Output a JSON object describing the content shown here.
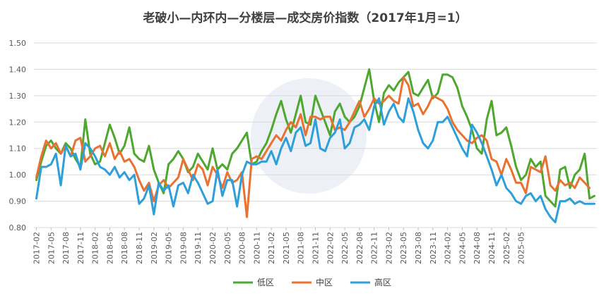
{
  "chart_data": {
    "type": "line",
    "title": "老破小—内环内—分楼层—成交房价指数（2017年1月=1）",
    "xlabel": "",
    "ylabel": "",
    "ylim": [
      0.8,
      1.5
    ],
    "yticks": [
      "0.80",
      "0.90",
      "1.00",
      "1.10",
      "1.20",
      "1.30",
      "1.40",
      "1.50"
    ],
    "grid": true,
    "legend_position": "bottom-center",
    "start_month": "2017-02",
    "x_tick_labels": [
      "2017-02",
      "2017-05",
      "2017-08",
      "2017-11",
      "2018-02",
      "2018-05",
      "2018-08",
      "2018-11",
      "2019-02",
      "2019-05",
      "2019-08",
      "2019-11",
      "2020-02",
      "2020-05",
      "2020-08",
      "2020-11",
      "2021-02",
      "2021-05",
      "2021-08",
      "2021-11",
      "2022-02",
      "2022-05",
      "2022-08",
      "2022-11",
      "2023-02",
      "2023-05",
      "2023-08",
      "2023-11",
      "2024-02",
      "2024-05",
      "2024-08",
      "2024-11",
      "2025-02",
      "2025-05"
    ],
    "series": [
      {
        "name": "低区",
        "color": "#4ea72e",
        "values": [
          0.98,
          1.05,
          1.11,
          1.13,
          1.1,
          1.08,
          1.12,
          1.1,
          1.06,
          1.03,
          1.21,
          1.08,
          1.04,
          1.05,
          1.12,
          1.19,
          1.14,
          1.08,
          1.11,
          1.18,
          1.08,
          1.06,
          1.05,
          1.11,
          1.02,
          0.97,
          0.93,
          1.04,
          1.06,
          1.09,
          1.06,
          1.01,
          1.03,
          1.08,
          1.05,
          1.02,
          1.1,
          1.02,
          1.04,
          1.02,
          1.08,
          1.1,
          1.13,
          1.16,
          1.04,
          1.05,
          1.09,
          1.12,
          1.17,
          1.23,
          1.28,
          1.21,
          1.16,
          1.23,
          1.3,
          1.2,
          1.19,
          1.3,
          1.25,
          1.2,
          1.15,
          1.24,
          1.27,
          1.22,
          1.2,
          1.22,
          1.26,
          1.33,
          1.4,
          1.28,
          1.2,
          1.31,
          1.34,
          1.32,
          1.35,
          1.37,
          1.39,
          1.31,
          1.3,
          1.33,
          1.36,
          1.29,
          1.31,
          1.38,
          1.38,
          1.37,
          1.33,
          1.26,
          1.22,
          1.17,
          1.1,
          1.08,
          1.21,
          1.28,
          1.15,
          1.16,
          1.18,
          1.11,
          1.03,
          0.98,
          1.0,
          1.06,
          1.03,
          1.05,
          0.92,
          0.9,
          0.88,
          1.02,
          1.03,
          0.95,
          1.0,
          1.02,
          1.08,
          0.91,
          0.92
        ]
      },
      {
        "name": "中区",
        "color": "#e97132",
        "values": [
          0.99,
          1.07,
          1.13,
          1.1,
          1.12,
          1.08,
          1.11,
          1.07,
          1.13,
          1.14,
          1.05,
          1.07,
          1.1,
          1.11,
          1.07,
          1.12,
          1.06,
          1.09,
          1.05,
          1.06,
          1.03,
          0.98,
          0.94,
          0.97,
          0.9,
          0.96,
          0.98,
          0.95,
          0.97,
          0.99,
          1.06,
          1.02,
          0.98,
          1.04,
          1.02,
          0.96,
          1.03,
          1.0,
          0.95,
          1.01,
          0.97,
          0.98,
          1.01,
          0.84,
          1.06,
          1.07,
          1.06,
          1.09,
          1.12,
          1.15,
          1.13,
          1.17,
          1.2,
          1.18,
          1.23,
          1.15,
          1.22,
          1.22,
          1.21,
          1.22,
          1.22,
          1.17,
          1.18,
          1.17,
          1.2,
          1.24,
          1.28,
          1.22,
          1.25,
          1.29,
          1.27,
          1.28,
          1.3,
          1.28,
          1.27,
          1.37,
          1.34,
          1.26,
          1.27,
          1.23,
          1.26,
          1.3,
          1.29,
          1.28,
          1.25,
          1.2,
          1.17,
          1.15,
          1.13,
          1.12,
          1.14,
          1.15,
          1.13,
          1.06,
          1.05,
          1.0,
          1.06,
          1.02,
          0.97,
          0.97,
          0.93,
          1.03,
          1.02,
          1.01,
          1.07,
          0.96,
          0.94,
          0.98,
          0.96,
          0.97,
          0.95,
          0.99,
          0.97,
          0.95
        ]
      },
      {
        "name": "高区",
        "color": "#2e9fd8",
        "values": [
          0.91,
          1.03,
          1.03,
          1.04,
          1.08,
          0.96,
          1.11,
          1.07,
          1.08,
          1.02,
          1.12,
          1.1,
          1.07,
          1.03,
          1.02,
          1.0,
          1.03,
          0.99,
          1.01,
          0.98,
          1.0,
          0.89,
          0.91,
          0.96,
          0.85,
          0.97,
          0.94,
          0.96,
          0.88,
          0.96,
          0.97,
          0.93,
          1.0,
          0.97,
          0.93,
          0.89,
          0.9,
          1.02,
          0.92,
          0.98,
          0.98,
          0.88,
          1.0,
          1.05,
          1.04,
          1.04,
          1.05,
          1.05,
          1.09,
          1.04,
          1.1,
          1.14,
          1.09,
          1.16,
          1.18,
          1.11,
          1.12,
          1.21,
          1.1,
          1.09,
          1.14,
          1.16,
          1.21,
          1.1,
          1.12,
          1.18,
          1.19,
          1.21,
          1.17,
          1.26,
          1.29,
          1.19,
          1.24,
          1.27,
          1.22,
          1.2,
          1.29,
          1.24,
          1.17,
          1.12,
          1.1,
          1.13,
          1.2,
          1.2,
          1.22,
          1.18,
          1.14,
          1.1,
          1.07,
          1.19,
          1.16,
          1.12,
          1.07,
          1.02,
          0.96,
          1.0,
          0.95,
          0.93,
          0.9,
          0.89,
          0.92,
          0.93,
          0.9,
          0.92,
          0.87,
          0.84,
          0.82,
          0.9,
          0.9,
          0.91,
          0.89,
          0.9,
          0.89,
          0.89,
          0.89
        ]
      }
    ]
  }
}
